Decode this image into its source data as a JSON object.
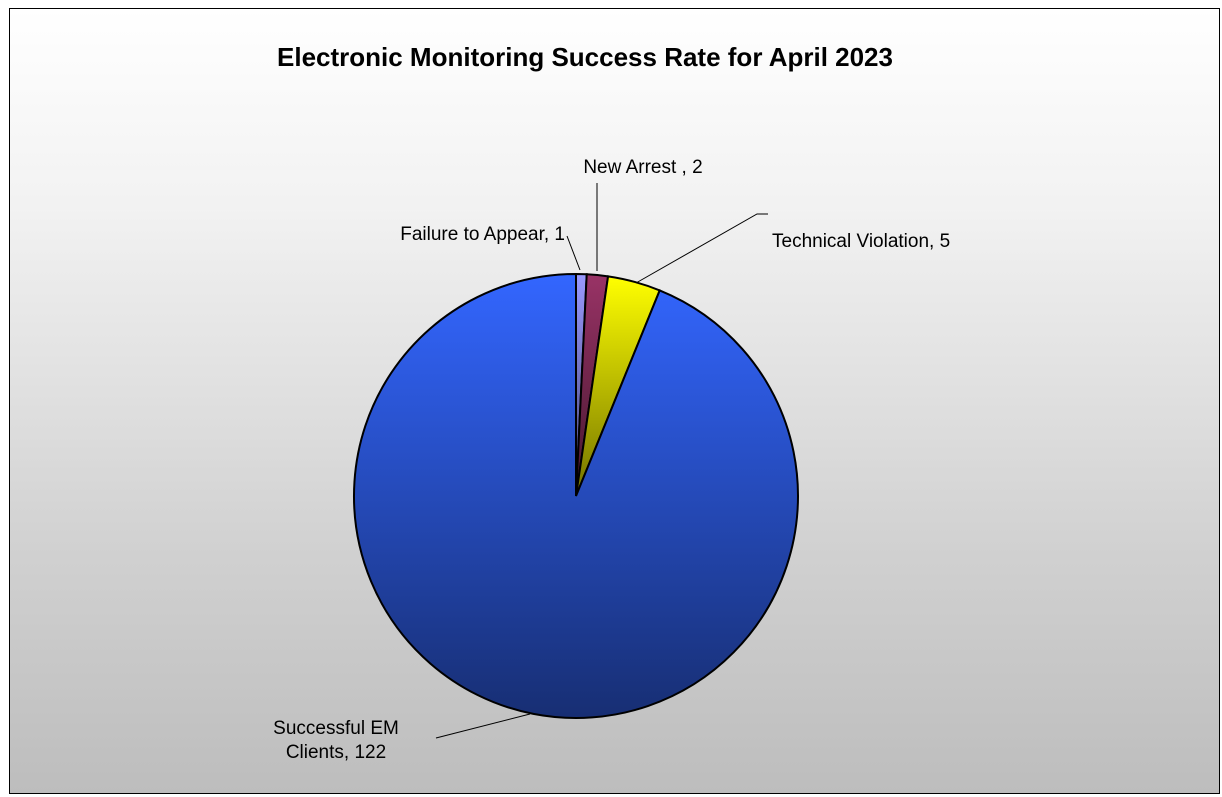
{
  "chart_data": {
    "type": "pie",
    "title": "Electronic Monitoring Success Rate for April 2023",
    "slices": [
      {
        "label": "Failure to Appear",
        "value": 1,
        "color": "#9999ff",
        "display": [
          "Failure to Appear, 1"
        ]
      },
      {
        "label": "New Arrest ",
        "value": 2,
        "color": "#993366",
        "display": [
          "New Arrest , 2"
        ]
      },
      {
        "label": "Technical Violation",
        "value": 5,
        "color": "#ffff00",
        "display": [
          "Technical Violation, 5"
        ]
      },
      {
        "label": "Successful EM Clients",
        "value": 122,
        "color": "#3366ff",
        "display": [
          "Successful EM",
          "Clients, 122"
        ]
      }
    ],
    "start_angle_deg": 0,
    "direction": "clockwise",
    "legend": "none",
    "data_labels": "category name and value with leader lines"
  }
}
